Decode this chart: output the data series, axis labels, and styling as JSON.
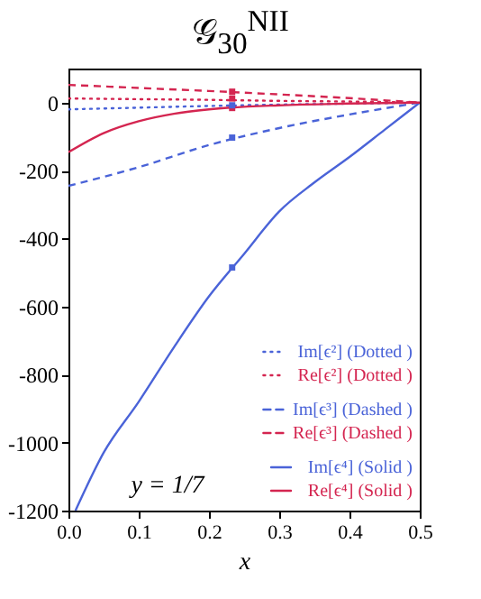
{
  "chart_data": {
    "type": "line",
    "title": "𝒢$_{30}$$^{NII}$",
    "xlabel": "x",
    "xlim": [
      0,
      0.5
    ],
    "ylim": [
      -1200,
      100
    ],
    "xticks": [
      {
        "value": 0,
        "label": "0.0"
      },
      0.1,
      0.2,
      0.3,
      0.4,
      0.5
    ],
    "yticks": [
      -1200,
      -1000,
      -800,
      -600,
      -400,
      -200,
      0
    ],
    "legend": "bottom right",
    "grid": false,
    "annotations": [
      "y = 1/7"
    ],
    "series": [
      {
        "name": "Im[ϵ²] (Dotted )",
        "color": "#4a63d8",
        "line_style": "dotted",
        "x": [
          0,
          0.1,
          0.2,
          0.3,
          0.4,
          0.5
        ],
        "values": [
          -20,
          -15,
          -10,
          -6,
          -3,
          0
        ]
      },
      {
        "name": "Re[ϵ²] (Dotted )",
        "color": "#d42550",
        "line_style": "dotted",
        "x": [
          0,
          0.1,
          0.2,
          0.3,
          0.4,
          0.5
        ],
        "values": [
          12,
          10,
          8,
          5,
          3,
          0
        ]
      },
      {
        "name": "Im[ϵ³] (Dashed )",
        "color": "#4a63d8",
        "line_style": "dashed",
        "x": [
          0,
          0.1,
          0.2,
          0.3,
          0.4,
          0.5
        ],
        "values": [
          -245,
          -190,
          -125,
          -75,
          -35,
          0
        ]
      },
      {
        "name": "Re[ϵ³] (Dashed )",
        "color": "#d42550",
        "line_style": "dashed",
        "x": [
          0,
          0.1,
          0.2,
          0.3,
          0.4,
          0.5
        ],
        "values": [
          52,
          43,
          34,
          24,
          13,
          0
        ]
      },
      {
        "name": "Im[ϵ⁴] (Solid )",
        "color": "#4a63d8",
        "line_style": "solid",
        "x": [
          0.01,
          0.05,
          0.1,
          0.15,
          0.2,
          0.25,
          0.3,
          0.35,
          0.4,
          0.45,
          0.5
        ],
        "values": [
          -1200,
          -1030,
          -880,
          -720,
          -570,
          -445,
          -320,
          -235,
          -160,
          -80,
          0
        ]
      },
      {
        "name": "Re[ϵ⁴] (Solid )",
        "color": "#d42550",
        "line_style": "solid",
        "x": [
          0,
          0.05,
          0.1,
          0.15,
          0.2,
          0.3,
          0.4,
          0.5
        ],
        "values": [
          -146,
          -90,
          -55,
          -33,
          -20,
          -8,
          -3,
          0
        ]
      },
      {
        "type": "scatter",
        "marker": "square",
        "color": "#d42550",
        "x": [
          0.233,
          0.233,
          0.233
        ],
        "values": [
          12,
          32,
          -16
        ]
      },
      {
        "type": "scatter",
        "marker": "square",
        "color": "#4a63d8",
        "x": [
          0.233,
          0.233,
          0.233
        ],
        "values": [
          -8,
          -103,
          -485
        ]
      }
    ]
  }
}
